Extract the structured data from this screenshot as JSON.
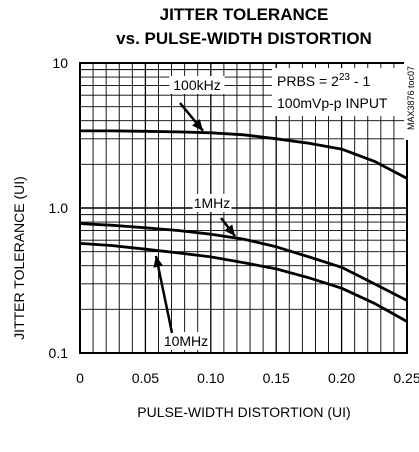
{
  "chart_data": {
    "type": "line",
    "title_line1": "JITTER TOLERANCE",
    "title_line2": "vs. PULSE-WIDTH DISTORTION",
    "xlabel": "PULSE-WIDTH DISTORTION (UI)",
    "ylabel": "JITTER TOLERANCE (UI)",
    "xlim": [
      0,
      0.25
    ],
    "ylim": [
      0.1,
      10
    ],
    "yscale": "log",
    "x_ticks": [
      0,
      0.05,
      0.1,
      0.15,
      0.2,
      0.25
    ],
    "x_tick_labels": [
      "0",
      "0.05",
      "0.10",
      "0.15",
      "0.20",
      "0.25"
    ],
    "y_tick_values": [
      0.1,
      1.0,
      10
    ],
    "y_tick_labels": [
      "0.1",
      "1.0",
      "10"
    ],
    "grid": true,
    "annotation_prbs_base": "PRBS = 2",
    "annotation_prbs_exp": "23",
    "annotation_prbs_tail": " - 1",
    "annotation_input": "100mVp-p INPUT",
    "side_code": "MAX3876 toc07",
    "series": [
      {
        "name": "100kHz",
        "x": [
          0,
          0.025,
          0.05,
          0.075,
          0.1,
          0.125,
          0.15,
          0.175,
          0.2,
          0.225,
          0.25
        ],
        "y": [
          3.4,
          3.4,
          3.38,
          3.35,
          3.3,
          3.2,
          3.0,
          2.8,
          2.55,
          2.1,
          1.6
        ]
      },
      {
        "name": "1MHz",
        "x": [
          0,
          0.025,
          0.05,
          0.075,
          0.1,
          0.125,
          0.15,
          0.175,
          0.2,
          0.225,
          0.25
        ],
        "y": [
          0.78,
          0.76,
          0.73,
          0.7,
          0.66,
          0.61,
          0.54,
          0.46,
          0.39,
          0.3,
          0.23
        ]
      },
      {
        "name": "10MHz",
        "x": [
          0,
          0.025,
          0.05,
          0.075,
          0.1,
          0.125,
          0.15,
          0.175,
          0.2,
          0.225,
          0.25
        ],
        "y": [
          0.57,
          0.55,
          0.52,
          0.49,
          0.46,
          0.42,
          0.38,
          0.33,
          0.28,
          0.22,
          0.165
        ]
      }
    ]
  }
}
